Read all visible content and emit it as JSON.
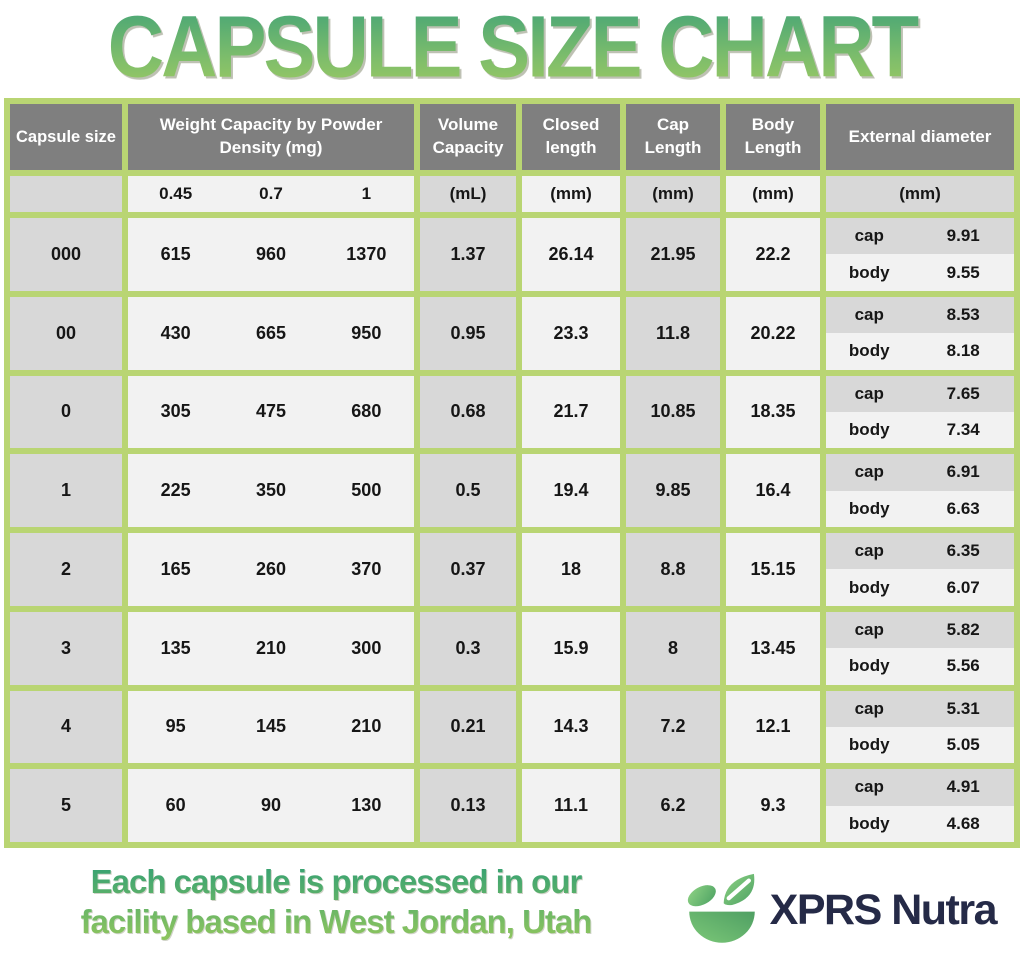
{
  "title": "CAPSULE SIZE CHART",
  "colors": {
    "title_gradient_top": "#43a377",
    "title_gradient_bottom": "#a8ce60",
    "table_border_green": "#b9d573",
    "header_gray": "#7f7f7f",
    "cell_gray": "#d8d8d8",
    "cell_white": "#f2f2f2",
    "text_dark": "#161616",
    "brand_navy": "#252a47",
    "logo_green_light": "#8ed284",
    "logo_green_dark": "#4da263"
  },
  "table": {
    "headers": {
      "capsule_size": "Capsule size",
      "weight_capacity": "Weight Capacity by Powder Density (mg)",
      "volume_capacity": "Volume Capacity",
      "closed_length": "Closed length",
      "cap_length": "Cap Length",
      "body_length": "Body Length",
      "external_diameter": "External diameter"
    },
    "units": {
      "densities": [
        "0.45",
        "0.7",
        "1"
      ],
      "volume": "(mL)",
      "closed": "(mm)",
      "cap": "(mm)",
      "body": "(mm)",
      "external": "(mm)"
    },
    "sub_labels": {
      "cap": "cap",
      "body": "body"
    },
    "rows": [
      {
        "size": "000",
        "weights": [
          "615",
          "960",
          "1370"
        ],
        "volume": "1.37",
        "closed": "26.14",
        "cap_length": "21.95",
        "body_length": "22.2",
        "ext_cap": "9.91",
        "ext_body": "9.55"
      },
      {
        "size": "00",
        "weights": [
          "430",
          "665",
          "950"
        ],
        "volume": "0.95",
        "closed": "23.3",
        "cap_length": "11.8",
        "body_length": "20.22",
        "ext_cap": "8.53",
        "ext_body": "8.18"
      },
      {
        "size": "0",
        "weights": [
          "305",
          "475",
          "680"
        ],
        "volume": "0.68",
        "closed": "21.7",
        "cap_length": "10.85",
        "body_length": "18.35",
        "ext_cap": "7.65",
        "ext_body": "7.34"
      },
      {
        "size": "1",
        "weights": [
          "225",
          "350",
          "500"
        ],
        "volume": "0.5",
        "closed": "19.4",
        "cap_length": "9.85",
        "body_length": "16.4",
        "ext_cap": "6.91",
        "ext_body": "6.63"
      },
      {
        "size": "2",
        "weights": [
          "165",
          "260",
          "370"
        ],
        "volume": "0.37",
        "closed": "18",
        "cap_length": "8.8",
        "body_length": "15.15",
        "ext_cap": "6.35",
        "ext_body": "6.07"
      },
      {
        "size": "3",
        "weights": [
          "135",
          "210",
          "300"
        ],
        "volume": "0.3",
        "closed": "15.9",
        "cap_length": "8",
        "body_length": "13.45",
        "ext_cap": "5.82",
        "ext_body": "5.56"
      },
      {
        "size": "4",
        "weights": [
          "95",
          "145",
          "210"
        ],
        "volume": "0.21",
        "closed": "14.3",
        "cap_length": "7.2",
        "body_length": "12.1",
        "ext_cap": "5.31",
        "ext_body": "5.05"
      },
      {
        "size": "5",
        "weights": [
          "60",
          "90",
          "130"
        ],
        "volume": "0.13",
        "closed": "11.1",
        "cap_length": "6.2",
        "body_length": "9.3",
        "ext_cap": "4.91",
        "ext_body": "4.68"
      }
    ]
  },
  "footer": {
    "line1": "Each capsule is processed in our",
    "line2": "facility based in West Jordan, Utah",
    "brand": "XPRS Nutra"
  },
  "chart_data": {
    "type": "table",
    "title": "Capsule Size Chart",
    "columns": [
      "Capsule size",
      "Weight capacity at 0.45 powder density (mg)",
      "Weight capacity at 0.7 powder density (mg)",
      "Weight capacity at 1 powder density (mg)",
      "Volume capacity (mL)",
      "Closed length (mm)",
      "Cap length (mm)",
      "Body length (mm)",
      "External diameter cap (mm)",
      "External diameter body (mm)"
    ],
    "rows": [
      [
        "000",
        615,
        960,
        1370,
        1.37,
        26.14,
        21.95,
        22.2,
        9.91,
        9.55
      ],
      [
        "00",
        430,
        665,
        950,
        0.95,
        23.3,
        11.8,
        20.22,
        8.53,
        8.18
      ],
      [
        "0",
        305,
        475,
        680,
        0.68,
        21.7,
        10.85,
        18.35,
        7.65,
        7.34
      ],
      [
        "1",
        225,
        350,
        500,
        0.5,
        19.4,
        9.85,
        16.4,
        6.91,
        6.63
      ],
      [
        "2",
        165,
        260,
        370,
        0.37,
        18,
        8.8,
        15.15,
        6.35,
        6.07
      ],
      [
        "3",
        135,
        210,
        300,
        0.3,
        15.9,
        8,
        13.45,
        5.82,
        5.56
      ],
      [
        "4",
        95,
        145,
        210,
        0.21,
        14.3,
        7.2,
        12.1,
        5.31,
        5.05
      ],
      [
        "5",
        60,
        90,
        130,
        0.13,
        11.1,
        6.2,
        9.3,
        4.91,
        4.68
      ]
    ]
  }
}
